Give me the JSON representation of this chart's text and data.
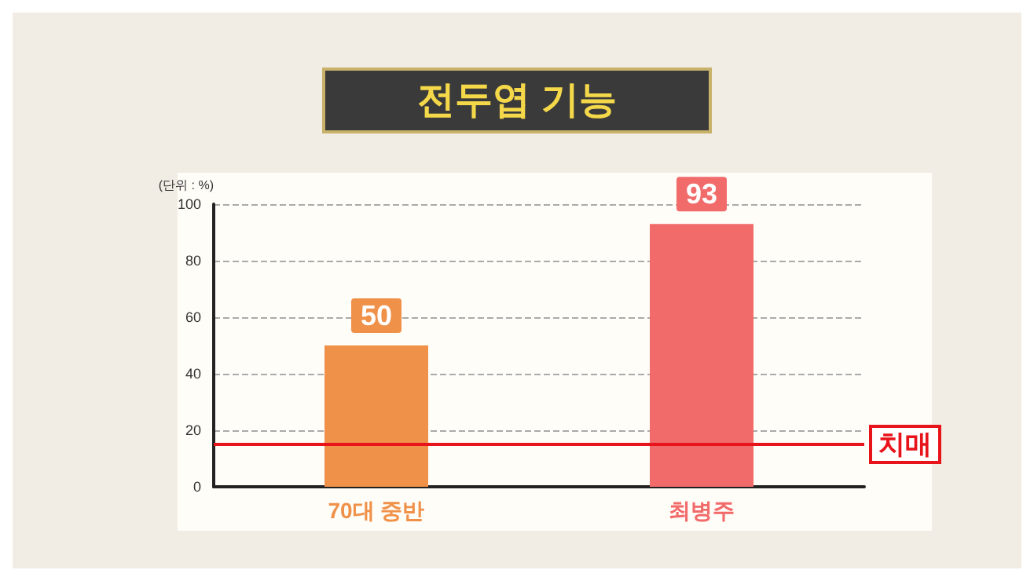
{
  "chart_data": {
    "type": "bar",
    "title": "전두엽 기능",
    "ylabel": "(단위 : %)",
    "categories": [
      "70대 중반",
      "최병주"
    ],
    "values": [
      50,
      93
    ],
    "colors": [
      "#f0914a",
      "#f26b6b"
    ],
    "ylim": [
      0,
      100
    ],
    "yticks": [
      0,
      20,
      40,
      60,
      80,
      100
    ],
    "grid": "y",
    "data_labels": true,
    "ref_lines": [
      {
        "axis": "y",
        "value": 15,
        "label": "치매",
        "color": "#e8141b"
      }
    ]
  }
}
